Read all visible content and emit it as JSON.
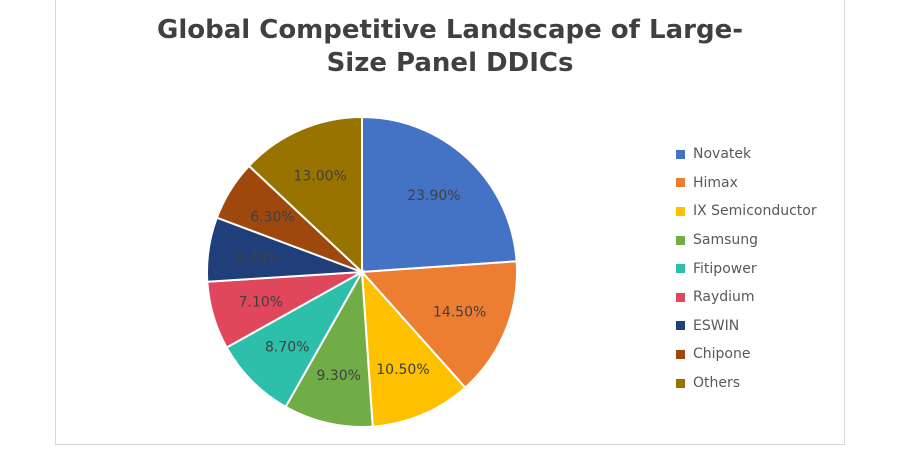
{
  "chart_data": {
    "type": "pie",
    "title_lines": [
      "Global Competitive Landscape of Large-",
      "Size Panel DDICs"
    ],
    "categories": [
      "Novatek",
      "Himax",
      "IX Semiconductor",
      "Samsung",
      "Fitipower",
      "Raydium",
      "ESWIN",
      "Chipone",
      "Others"
    ],
    "values": [
      23.9,
      14.5,
      10.5,
      9.3,
      8.7,
      7.1,
      6.7,
      6.3,
      13.0
    ],
    "data_labels": [
      "23.90%",
      "14.50%",
      "10.50%",
      "9.30%",
      "8.70%",
      "7.10%",
      "6.70%",
      "6.30%",
      "13.00%"
    ],
    "colors": [
      "#4472c4",
      "#ed7d31",
      "#ffc000",
      "#70ad47",
      "#2ebfaa",
      "#e0475c",
      "#203f7a",
      "#9e480e",
      "#997300"
    ],
    "legend_position": "right",
    "start_angle": "12 o'clock, clockwise"
  }
}
